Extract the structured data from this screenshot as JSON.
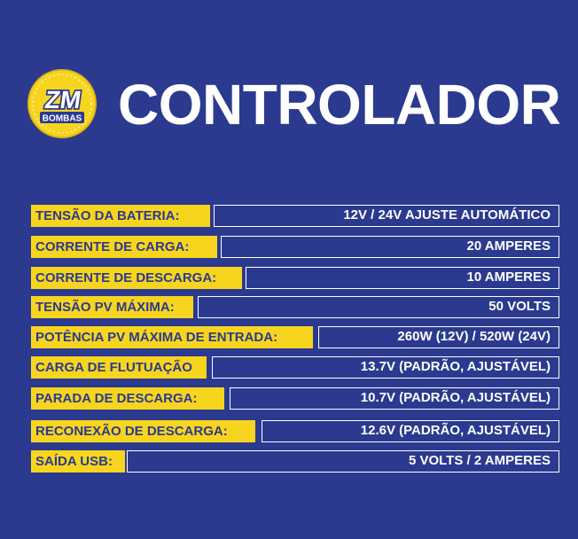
{
  "header": {
    "logo_top_text": "ZM",
    "logo_bottom_text": "BOMBAS",
    "title": "CONTROLADOR"
  },
  "colors": {
    "background": "#2b3a8f",
    "accent_yellow": "#f7d51f",
    "text_white": "#ffffff"
  },
  "specs": [
    {
      "label": "TENSÃO DA BATERIA:",
      "value": "12V / 24V AJUSTE AUTOMÁTICO"
    },
    {
      "label": "CORRENTE DE CARGA:",
      "value": "20 AMPERES"
    },
    {
      "label": "CORRENTE DE DESCARGA:",
      "value": "10 AMPERES"
    },
    {
      "label": "TENSÃO PV MÁXIMA:",
      "value": "50 VOLTS"
    },
    {
      "label": "POTÊNCIA PV MÁXIMA DE ENTRADA:",
      "value": "260W (12V) / 520W (24V)"
    },
    {
      "label": "CARGA DE FLUTUAÇÃO",
      "value": "13.7V (PADRÃO, AJUSTÁVEL)"
    },
    {
      "label": "PARADA DE DESCARGA:",
      "value": "10.7V (PADRÃO, AJUSTÁVEL)"
    },
    {
      "label": "RECONEXÃO DE DESCARGA:",
      "value": "12.6V (PADRÃO, AJUSTÁVEL)"
    },
    {
      "label": "SAÍDA USB:",
      "value": "5 VOLTS / 2 AMPERES"
    }
  ]
}
